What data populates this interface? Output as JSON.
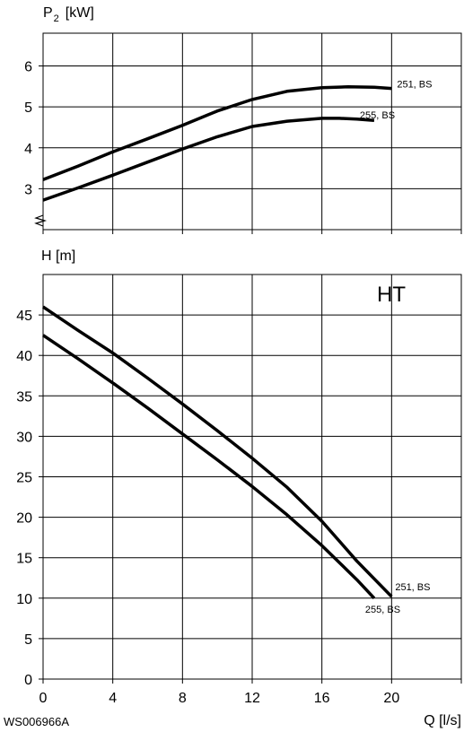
{
  "figure_id": "WS006966A",
  "top_ylabel_symbol": "P",
  "top_ylabel_sub": "2",
  "top_ylabel_unit": "[kW]",
  "bottom_ylabel": "H [m]",
  "xlabel": "Q [l/s]",
  "annotation": "HT",
  "chart_data": [
    {
      "type": "line",
      "xlim": [
        0,
        24
      ],
      "ylim": [
        2,
        6.8
      ],
      "ytick_labels": [
        "3",
        "4",
        "5",
        "6"
      ],
      "grid": true,
      "series": [
        {
          "name": "251, BS",
          "x": [
            0,
            2,
            4,
            6,
            8,
            10,
            12,
            14,
            16,
            17.5,
            19,
            20
          ],
          "y": [
            3.22,
            3.55,
            3.9,
            4.22,
            4.55,
            4.9,
            5.18,
            5.38,
            5.47,
            5.49,
            5.48,
            5.45
          ]
        },
        {
          "name": "255, BS",
          "x": [
            0,
            2,
            4,
            6,
            8,
            10,
            12,
            14,
            16,
            17,
            18,
            19
          ],
          "y": [
            2.72,
            3.02,
            3.33,
            3.65,
            3.97,
            4.27,
            4.52,
            4.65,
            4.72,
            4.72,
            4.7,
            4.67
          ]
        }
      ]
    },
    {
      "type": "line",
      "xlim": [
        0,
        24
      ],
      "ylim": [
        0,
        50
      ],
      "ytick_labels": [
        "0",
        "5",
        "10",
        "15",
        "20",
        "25",
        "30",
        "35",
        "40",
        "45"
      ],
      "xtick_labels": [
        "0",
        "4",
        "8",
        "12",
        "16",
        "20"
      ],
      "grid": true,
      "series": [
        {
          "name": "251, BS",
          "x": [
            0,
            2,
            4,
            6,
            8,
            10,
            12,
            14,
            16,
            18,
            19,
            20
          ],
          "y": [
            46,
            43.1,
            40.3,
            37.2,
            34,
            30.7,
            27.3,
            23.7,
            19.5,
            14.6,
            12.4,
            10.2
          ]
        },
        {
          "name": "255, BS",
          "x": [
            0,
            2,
            4,
            6,
            8,
            10,
            12,
            14,
            16,
            18,
            19
          ],
          "y": [
            42.5,
            39.6,
            36.6,
            33.5,
            30.3,
            27.1,
            23.8,
            20.3,
            16.5,
            12.3,
            10
          ]
        }
      ]
    }
  ]
}
